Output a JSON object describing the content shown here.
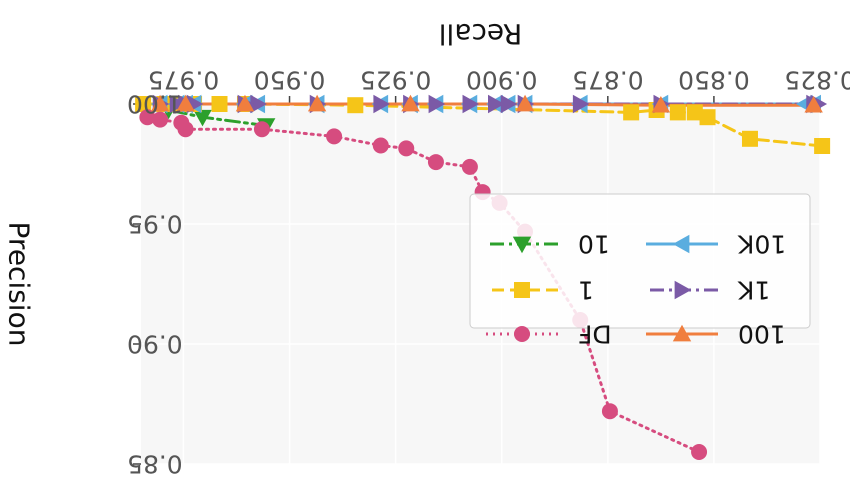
{
  "chart_data": {
    "type": "line",
    "rendering": "mirrored (rotated 180°)",
    "xlabel": "Recall",
    "ylabel": "Precision",
    "xlim": [
      0.825,
      0.985
    ],
    "ylim": [
      1.0,
      0.85
    ],
    "xticks": [
      "0.825",
      "0.850",
      "0.875",
      "0.900",
      "0.925",
      "0.950",
      "0.975"
    ],
    "xtick_values": [
      0.825,
      0.85,
      0.875,
      0.9,
      0.925,
      0.95,
      0.975
    ],
    "yticks": [
      "0.85",
      "0.90",
      "0.95",
      "1.00"
    ],
    "ytick_values": [
      0.85,
      0.9,
      0.95,
      1.0
    ],
    "grid": true,
    "legend_position": "center-right",
    "series": [
      {
        "name": "10",
        "color": "#2ca02c",
        "marker": "triangle-up",
        "linestyle": "dashdot",
        "x": [
          0.9555,
          0.9705,
          0.9785
        ],
        "y": [
          0.991,
          0.9945,
          0.9975
        ]
      },
      {
        "name": "1",
        "color": "#f5c518",
        "marker": "square",
        "linestyle": "dashed",
        "x": [
          0.8245,
          0.8415,
          0.8515,
          0.8545,
          0.8585,
          0.8635,
          0.8695,
          0.9345,
          0.9605,
          0.9665,
          0.9725,
          0.9745,
          0.9775,
          0.9795,
          0.9845
        ],
        "y": [
          0.9825,
          0.9855,
          0.9945,
          0.9965,
          0.9965,
          0.9975,
          0.9965,
          0.9995,
          1.0,
          1.0,
          1.0,
          1.0,
          1.0,
          1.0,
          1.0
        ]
      },
      {
        "name": "DF",
        "color": "#d64c7f",
        "marker": "circle",
        "linestyle": "dotted",
        "x": [
          0.8535,
          0.8745,
          0.8815,
          0.8945,
          0.9005,
          0.9045,
          0.9075,
          0.9155,
          0.9225,
          0.9285,
          0.9395,
          0.9565,
          0.9745,
          0.9755,
          0.9805,
          0.9835
        ],
        "y": [
          0.855,
          0.872,
          0.91,
          0.9468,
          0.9588,
          0.9633,
          0.9738,
          0.9758,
          0.9815,
          0.9827,
          0.9865,
          0.9895,
          0.9895,
          0.9922,
          0.9935,
          0.9945
        ]
      },
      {
        "name": "10K",
        "color": "#5aaddf",
        "marker": "triangle-right",
        "linestyle": "solid",
        "x": [
          0.8265,
          0.8285,
          0.8625,
          0.8815,
          0.8945,
          0.8985,
          0.9015,
          0.9075,
          0.9155,
          0.9215,
          0.9285,
          0.9435,
          0.9575,
          0.9605,
          0.9725,
          0.9745,
          0.9765,
          0.9805
        ],
        "y": [
          1,
          1,
          1,
          1,
          1,
          1,
          1,
          1,
          1,
          1,
          1,
          1,
          1,
          1,
          1,
          1,
          1,
          1
        ]
      },
      {
        "name": "1K",
        "color": "#7b5aa6",
        "marker": "triangle-left",
        "linestyle": "dashdot",
        "x": [
          0.8255,
          0.8265,
          0.8625,
          0.8815,
          0.8945,
          0.8985,
          0.9015,
          0.9075,
          0.9155,
          0.9215,
          0.9285,
          0.9435,
          0.9575,
          0.9605,
          0.9725,
          0.9745,
          0.9765,
          0.9805
        ],
        "y": [
          1,
          1,
          1,
          1,
          1,
          1,
          1,
          1,
          1,
          1,
          1,
          1,
          1,
          1,
          1,
          1,
          1,
          1
        ]
      },
      {
        "name": "100",
        "color": "#f07e3e",
        "marker": "triangle-down",
        "linestyle": "solid",
        "x": [
          0.8265,
          0.8625,
          0.8945,
          0.9215,
          0.9435,
          0.9605,
          0.9745,
          0.9805
        ],
        "y": [
          0.9995,
          0.9995,
          1,
          1,
          1,
          1,
          1,
          1
        ]
      }
    ]
  }
}
